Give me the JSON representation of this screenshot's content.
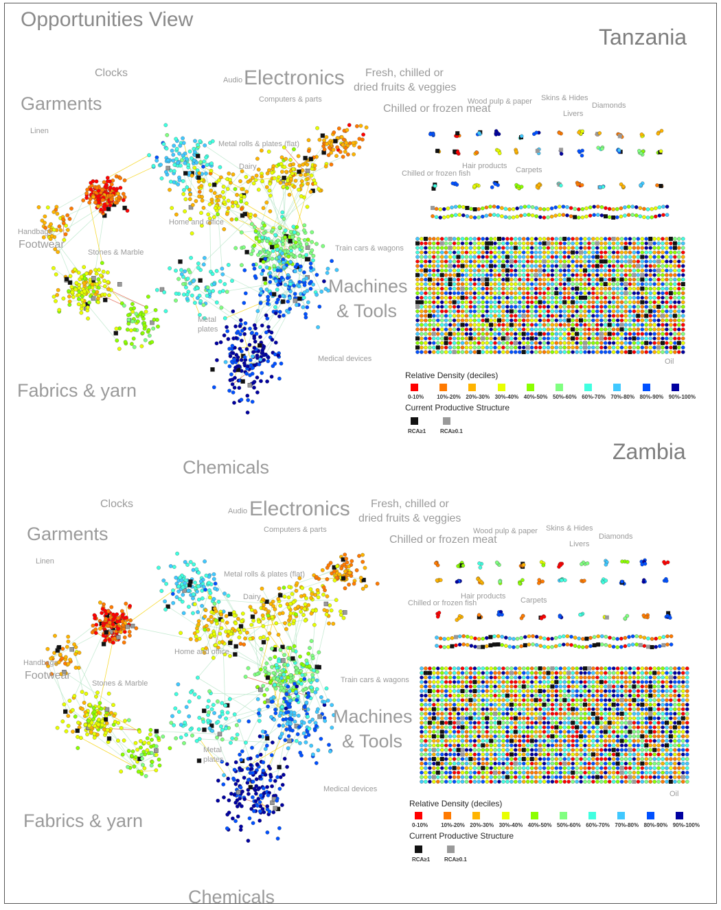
{
  "title": "Opportunities View",
  "legend": {
    "density_title": "Relative Density (deciles)",
    "deciles": [
      {
        "label": "0-10%",
        "color": "#ff0000"
      },
      {
        "label": "10%-20%",
        "color": "#ff7a00"
      },
      {
        "label": "20%-30%",
        "color": "#ffb400"
      },
      {
        "label": "30%-40%",
        "color": "#e8ff00"
      },
      {
        "label": "40%-50%",
        "color": "#8cff00"
      },
      {
        "label": "50%-60%",
        "color": "#80ff80"
      },
      {
        "label": "60%-70%",
        "color": "#40ffe0"
      },
      {
        "label": "70%-80%",
        "color": "#40c8ff"
      },
      {
        "label": "80%-90%",
        "color": "#0050ff"
      },
      {
        "label": "90%-100%",
        "color": "#0000a0"
      }
    ],
    "structure_title": "Current Productive Structure",
    "structure": [
      {
        "label": "RCA≥1",
        "color": "#111111"
      },
      {
        "label": "RCA≥0.1",
        "color": "#999999"
      }
    ]
  },
  "labels": {
    "clocks": "Clocks",
    "audio": "Audio",
    "electronics": "Electronics",
    "fresh1": "Fresh, chilled or",
    "fresh2": "dried fruits & veggies",
    "garments": "Garments",
    "computers": "Computers & parts",
    "meat": "Chilled or frozen meat",
    "linen": "Linen",
    "woodpulp": "Wood pulp & paper",
    "skins": "Skins & Hides",
    "diamonds": "Diamonds",
    "livers": "Livers",
    "metalrolls": "Metal rolls & plates (flat)",
    "dairy": "Dairy",
    "fish": "Chilled or frozen fish",
    "hair": "Hair products",
    "carpets": "Carpets",
    "homeoffice": "Home and office",
    "handbags": "Handbags",
    "footwear": "Footwear",
    "stonesmarble": "Stones & Marble",
    "traincars": "Train cars & wagons",
    "machines": "Machines",
    "tools": "& Tools",
    "metal": "Metal",
    "plates": "plates",
    "oil": "Oil",
    "medical": "Medical devices",
    "fabrics": "Fabrics & yarn",
    "chemicals": "Chemicals"
  },
  "panels": [
    {
      "country": "Tanzania",
      "seed": 7
    },
    {
      "country": "Zambia",
      "seed": 31
    }
  ]
}
